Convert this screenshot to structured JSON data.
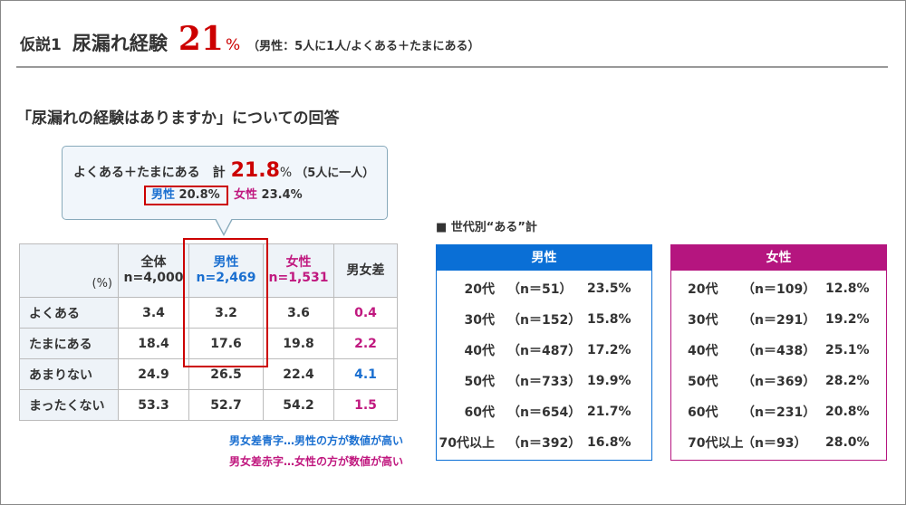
{
  "header": {
    "label": "仮説1",
    "title": "尿漏れ経験",
    "value": "21",
    "unit": "%",
    "note": "（男性：5人に1人/よくある＋たまにある）"
  },
  "subtitle": "「尿漏れの経験はありますか」についての回答",
  "callout": {
    "label": "よくある＋たまにある　計",
    "value": "21.8",
    "unit": "%",
    "note": "（5人に一人）",
    "male_label": "男性",
    "male_value": "20.8%",
    "female_label": "女性",
    "female_value": "23.4%"
  },
  "table": {
    "unit": "(%)",
    "headers": [
      {
        "label": "全体",
        "n": "n=4,000"
      },
      {
        "label": "男性",
        "n": "n=2,469"
      },
      {
        "label": "女性",
        "n": "n=1,531"
      },
      {
        "label": "男女差",
        "n": ""
      }
    ],
    "rows": [
      {
        "label": "よくある",
        "values": [
          "3.4",
          "3.2",
          "3.6",
          "0.4"
        ],
        "diff_color": "#c0187f"
      },
      {
        "label": "たまにある",
        "values": [
          "18.4",
          "17.6",
          "19.8",
          "2.2"
        ],
        "diff_color": "#c0187f"
      },
      {
        "label": "あまりない",
        "values": [
          "24.9",
          "26.5",
          "22.4",
          "4.1"
        ],
        "diff_color": "#1a6fd0"
      },
      {
        "label": "まったくない",
        "values": [
          "53.3",
          "52.7",
          "54.2",
          "1.5"
        ],
        "diff_color": "#c0187f"
      }
    ],
    "note_blue": "男女差青字…男性の方が数値が高い",
    "note_red": "男女差赤字…女性の方が数値が高い"
  },
  "generation": {
    "title": "■ 世代別“ある”計",
    "male": {
      "title": "男性",
      "color": "#0a6fd6",
      "rows": [
        [
          "20代",
          "（n＝51）",
          "23.5%"
        ],
        [
          "30代",
          "（n＝152）",
          "15.8%"
        ],
        [
          "40代",
          "（n＝487）",
          "17.2%"
        ],
        [
          "50代",
          "（n＝733）",
          "19.9%"
        ],
        [
          "60代",
          "（n＝654）",
          "21.7%"
        ],
        [
          "70代以上",
          "（n＝392）",
          "16.8%"
        ]
      ]
    },
    "female": {
      "title": "女性",
      "color": "#b5157f",
      "rows": [
        [
          "20代",
          "（n＝109）",
          "12.8%"
        ],
        [
          "30代",
          "（n＝291）",
          "19.2%"
        ],
        [
          "40代",
          "（n＝438）",
          "25.1%"
        ],
        [
          "50代",
          "（n＝369）",
          "28.2%"
        ],
        [
          "60代",
          "（n＝231）",
          "20.8%"
        ],
        [
          "70代以上",
          "（n＝93）",
          "28.0%"
        ]
      ]
    }
  }
}
